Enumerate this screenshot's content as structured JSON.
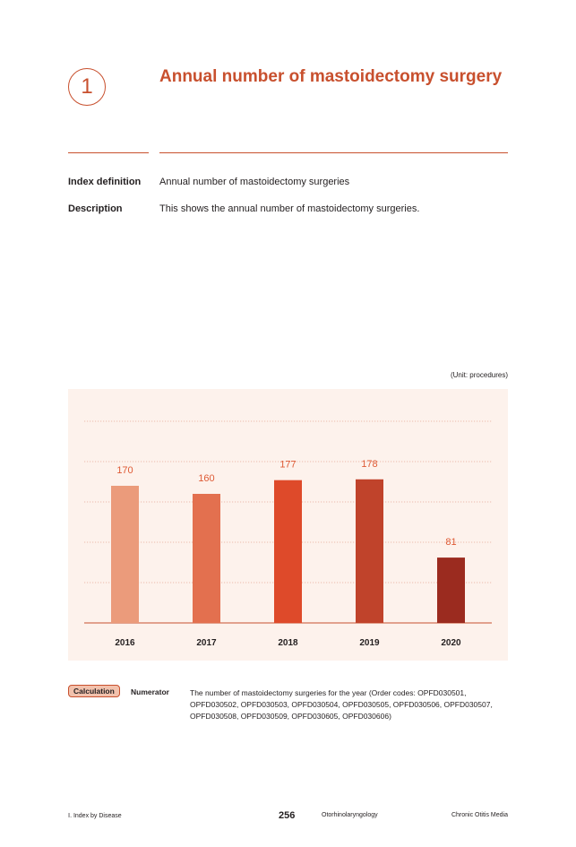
{
  "section_number": "1",
  "title": "Annual number of mastoidectomy surgery",
  "index_definition": {
    "label": "Index definition",
    "text": "Annual number of mastoidectomy surgeries"
  },
  "description": {
    "label": "Description",
    "text": "This shows the annual number of mastoidectomy surgeries."
  },
  "unit": "(Unit: procedures)",
  "chart_data": {
    "type": "bar",
    "categories": [
      "2016",
      "2017",
      "2018",
      "2019",
      "2020"
    ],
    "values": [
      170,
      160,
      177,
      178,
      81
    ],
    "colors": [
      "#eb9b7b",
      "#e3704f",
      "#de4a2a",
      "#c0432b",
      "#9b2b1f"
    ],
    "label_color": "#de5a35",
    "ylim": [
      0,
      250
    ],
    "grid": "dotted",
    "title": "",
    "xlabel": "",
    "ylabel": ""
  },
  "calculation": {
    "badge": "Calculation",
    "numerator_label": "Numerator",
    "numerator_text": "The number of mastoidectomy surgeries for the year (Order codes: OPFD030501, OPFD030502, OPFD030503, OPFD030504, OPFD030505, OPFD030506, OPFD030507, OPFD030508, OPFD030509, OPFD030605, OPFD030606)"
  },
  "footer": {
    "section": "Ⅰ. Index by Disease",
    "page": "256",
    "department": "Otorhinolaryngology",
    "topic": "Chronic Otitis Media"
  }
}
